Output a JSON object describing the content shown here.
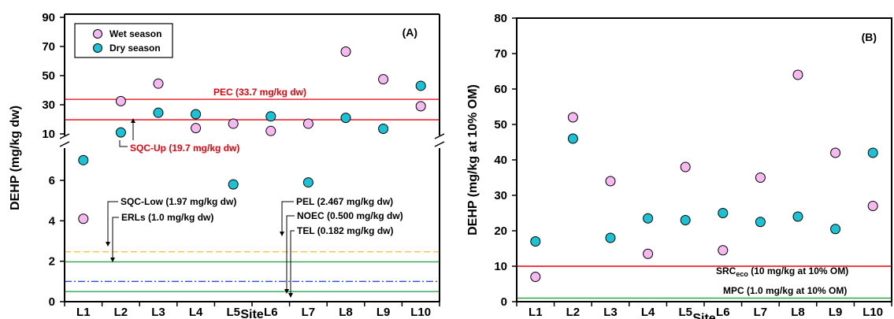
{
  "chart_data": [
    {
      "type": "scatter",
      "panel_label": "(A)",
      "xlabel": "Site",
      "ylabel": "DEHP (mg/kg dw)",
      "categories": [
        "L1",
        "L2",
        "L3",
        "L4",
        "L5",
        "L6",
        "L7",
        "L8",
        "L9",
        "L10"
      ],
      "axis_break": true,
      "upper_segment": {
        "ylim": [
          0,
          90
        ],
        "ticks": [
          "10",
          "30",
          "50",
          "70",
          "90"
        ]
      },
      "lower_segment": {
        "ylim": [
          0,
          8
        ],
        "ticks": [
          "0",
          "2",
          "4",
          "6"
        ]
      },
      "legend": {
        "placement": "top-left",
        "entries": [
          {
            "label": "Wet season",
            "color": "#f5b8f0"
          },
          {
            "label": "Dry season",
            "color": "#19c3d6"
          }
        ]
      },
      "series": [
        {
          "name": "Wet season",
          "color": "#f5b8f0",
          "values": [
            4.1,
            32.5,
            44.5,
            14.0,
            17.0,
            12.0,
            17.0,
            66.5,
            47.5,
            29.0
          ]
        },
        {
          "name": "Dry season",
          "color": "#19c3d6",
          "values": [
            7.0,
            11.0,
            24.5,
            23.5,
            5.8,
            22.0,
            5.9,
            21.0,
            13.5,
            43.0
          ]
        }
      ],
      "reference_lines": [
        {
          "label": "PEC  (33.7 mg/kg dw)",
          "value": 33.7,
          "color": "#e8000b",
          "style": "solid",
          "segment": "upper"
        },
        {
          "label": "SQC-Up (19.7 mg/kg dw)",
          "value": 19.7,
          "color": "#e8000b",
          "style": "solid",
          "segment": "upper"
        },
        {
          "label": "PEL (2.467 mg/kg dw)",
          "value": 2.467,
          "color": "#f5c242",
          "style": "dashed",
          "segment": "lower"
        },
        {
          "label": "SQC-Low (1.97 mg/kg dw)",
          "value": 1.97,
          "color": "#2aa84a",
          "style": "solid",
          "segment": "lower"
        },
        {
          "label": "ERLs (1.0 mg/kg dw)",
          "value": 1.0,
          "color": "#2b4fd8",
          "style": "dashdot",
          "segment": "lower"
        },
        {
          "label": "NOEC (0.500 mg/kg dw)",
          "value": 0.5,
          "color": "#2aa84a",
          "style": "solid",
          "segment": "lower"
        },
        {
          "label": "TEL (0.182 mg/kg dw)",
          "value": 0.182,
          "color": "#000000",
          "style": "none",
          "segment": "lower"
        }
      ]
    },
    {
      "type": "scatter",
      "panel_label": "(B)",
      "xlabel": "Site",
      "ylabel": "DEHP (mg/kg at 10% OM)",
      "categories": [
        "L1",
        "L2",
        "L3",
        "L4",
        "L5",
        "L6",
        "L7",
        "L8",
        "L9",
        "L10"
      ],
      "ylim": [
        0,
        80
      ],
      "yticks": [
        "0",
        "10",
        "20",
        "30",
        "40",
        "50",
        "60",
        "70",
        "80"
      ],
      "series": [
        {
          "name": "Wet season",
          "color": "#f5b8f0",
          "values": [
            7.0,
            52.0,
            34.0,
            13.5,
            38.0,
            14.5,
            35.0,
            64.0,
            42.0,
            27.0
          ]
        },
        {
          "name": "Dry season",
          "color": "#19c3d6",
          "values": [
            17.0,
            46.0,
            18.0,
            23.5,
            23.0,
            25.0,
            22.5,
            24.0,
            20.5,
            42.0
          ]
        }
      ],
      "reference_lines": [
        {
          "label_main": "SRC",
          "label_sub": "eco",
          "label_rest": " (10 mg/kg at 10% OM)",
          "value": 10,
          "color": "#e8000b"
        },
        {
          "label": "MPC (1.0 mg/kg at 10% OM)",
          "value": 1.0,
          "color": "#2aa84a"
        }
      ]
    }
  ]
}
